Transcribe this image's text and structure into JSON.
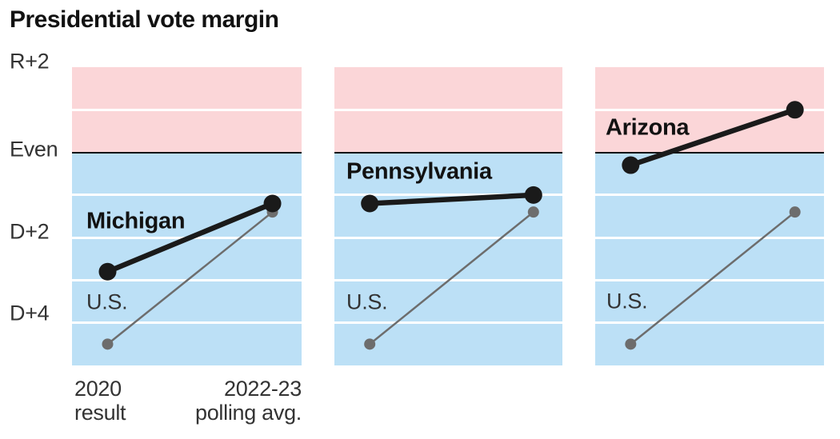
{
  "title": "Presidential vote margin",
  "chart_data": {
    "type": "line",
    "title": "Presidential vote margin",
    "subtitle": "",
    "unit": "percentage-point presidential vote margin; positive = Democratic (D), negative = Republican (R)",
    "x_categories": [
      "2020 result",
      "2022-23 polling avg."
    ],
    "x_tick_labels": [
      [
        "2020",
        "result"
      ],
      [
        "2022-23",
        "polling avg."
      ]
    ],
    "y_ticks": [
      {
        "label": "R+2",
        "value": -2
      },
      {
        "label": "Even",
        "value": 0
      },
      {
        "label": "D+2",
        "value": 2
      },
      {
        "label": "D+4",
        "value": 4
      }
    ],
    "y_axis_top_value": -2,
    "y_axis_bottom_value": 5,
    "gridlines_every": 1,
    "us_label": "U.S.",
    "panels": [
      {
        "state": "Michigan",
        "series": [
          {
            "name": "Michigan",
            "values": [
              2.8,
              1.2
            ]
          },
          {
            "name": "U.S.",
            "values": [
              4.5,
              1.4
            ]
          }
        ]
      },
      {
        "state": "Pennsylvania",
        "series": [
          {
            "name": "Pennsylvania",
            "values": [
              1.2,
              1.0
            ]
          },
          {
            "name": "U.S.",
            "values": [
              4.5,
              1.4
            ]
          }
        ]
      },
      {
        "state": "Arizona",
        "series": [
          {
            "name": "Arizona",
            "values": [
              0.3,
              -1.0
            ]
          },
          {
            "name": "U.S.",
            "values": [
              4.5,
              1.4
            ]
          }
        ]
      }
    ],
    "colors": {
      "republican_band": "#fbd6d8",
      "democratic_band": "#bce0f6",
      "state_line": "#1a1a1a",
      "us_line": "#6d6d6d",
      "even_line": "#121212",
      "gridline": "#ffffff",
      "text": "#333333",
      "title_text": "#121212"
    }
  }
}
